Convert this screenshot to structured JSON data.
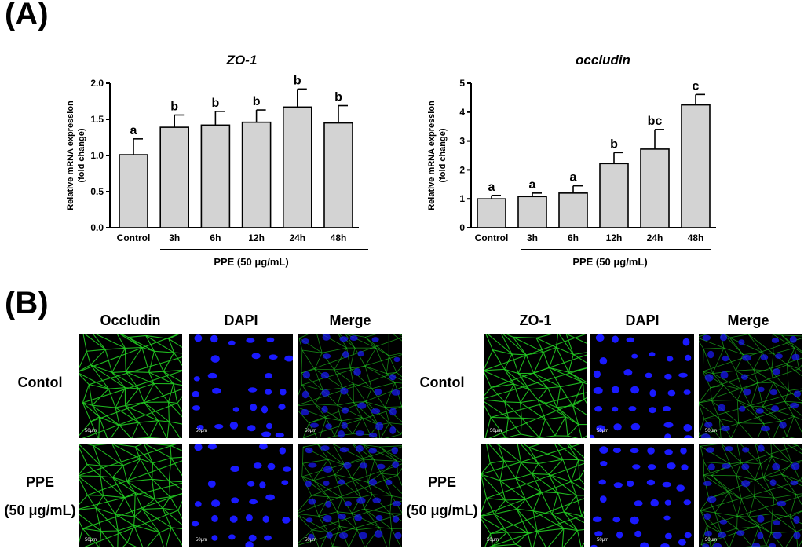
{
  "panel_a_label": "(A)",
  "panel_b_label": "(B)",
  "chart_data": [
    {
      "type": "bar",
      "title": "ZO-1",
      "ylabel_line1": "Relative mRNA expression",
      "ylabel_line2": "(fold change)",
      "categories": [
        "Control",
        "3h",
        "6h",
        "12h",
        "24h",
        "48h"
      ],
      "values": [
        1.01,
        1.39,
        1.42,
        1.46,
        1.67,
        1.45
      ],
      "errors": [
        0.22,
        0.17,
        0.19,
        0.17,
        0.25,
        0.24
      ],
      "letters": [
        "a",
        "b",
        "b",
        "b",
        "b",
        "b"
      ],
      "ylim": [
        0,
        2.0
      ],
      "yticks": [
        "0.0",
        "0.5",
        "1.0",
        "1.5",
        "2.0"
      ],
      "treatment_label": "PPE (50 μg/mL)",
      "bar_color": "#d3d3d3"
    },
    {
      "type": "bar",
      "title": "occludin",
      "ylabel_line1": "Relative mRNA expression",
      "ylabel_line2": "(fold change)",
      "categories": [
        "Control",
        "3h",
        "6h",
        "12h",
        "24h",
        "48h"
      ],
      "values": [
        1.0,
        1.08,
        1.2,
        2.22,
        2.72,
        4.25
      ],
      "errors": [
        0.12,
        0.12,
        0.25,
        0.38,
        0.68,
        0.36
      ],
      "letters": [
        "a",
        "a",
        "a",
        "b",
        "bc",
        "c"
      ],
      "ylim": [
        0,
        5
      ],
      "yticks": [
        "0",
        "1",
        "2",
        "3",
        "4",
        "5"
      ],
      "treatment_label": "PPE (50 μg/mL)",
      "bar_color": "#d3d3d3"
    }
  ],
  "microscopy": {
    "left": {
      "columns": [
        "Occludin",
        "DAPI",
        "Merge"
      ],
      "rows": [
        {
          "line1": "Contol",
          "line2": ""
        },
        {
          "line1": "PPE",
          "line2": "(50 μg/mL)"
        }
      ]
    },
    "right": {
      "columns": [
        "ZO-1",
        "DAPI",
        "Merge"
      ],
      "rows": [
        {
          "line1": "Contol",
          "line2": ""
        },
        {
          "line1": "PPE",
          "line2": "(50 μg/mL)"
        }
      ]
    },
    "scale_bar": "50μm",
    "colors": {
      "membrane": "#22cc22",
      "nuclei": "#1a1aff",
      "background": "#000000"
    }
  }
}
